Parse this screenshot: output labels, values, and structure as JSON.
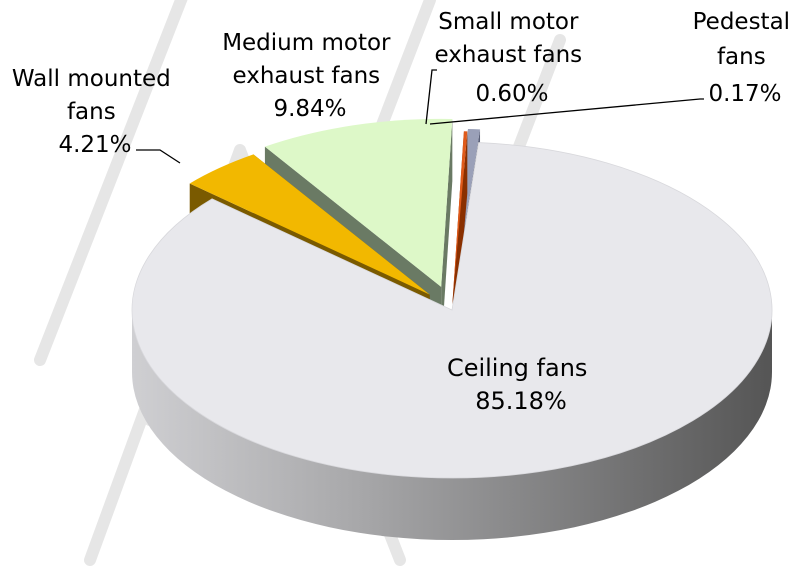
{
  "chart_data": {
    "type": "pie",
    "title": "",
    "slices": [
      {
        "name": "Ceiling fans",
        "value": 85.18,
        "value_label": "85.18%",
        "color": "#e8e8ec",
        "side_color": "#9a9a9a"
      },
      {
        "name": "Wall mounted fans",
        "value": 4.21,
        "value_label": "4.21%",
        "color": "#f2b800",
        "side_color": "#7a5a00"
      },
      {
        "name": "Medium motor exhaust fans",
        "value": 9.84,
        "value_label": "9.84%",
        "color": "#ddf8c8",
        "side_color": "#6a7a64"
      },
      {
        "name": "Small motor exhaust fans",
        "value": 0.6,
        "value_label": "0.60%",
        "color": "#9aa0b8",
        "side_color": "#5a6078"
      },
      {
        "name": "Pedestal fans",
        "value": 0.17,
        "value_label": "0.17%",
        "color": "#e05a1a",
        "side_color": "#8a3000"
      }
    ],
    "legend": "none",
    "style": "3d-exploded"
  }
}
